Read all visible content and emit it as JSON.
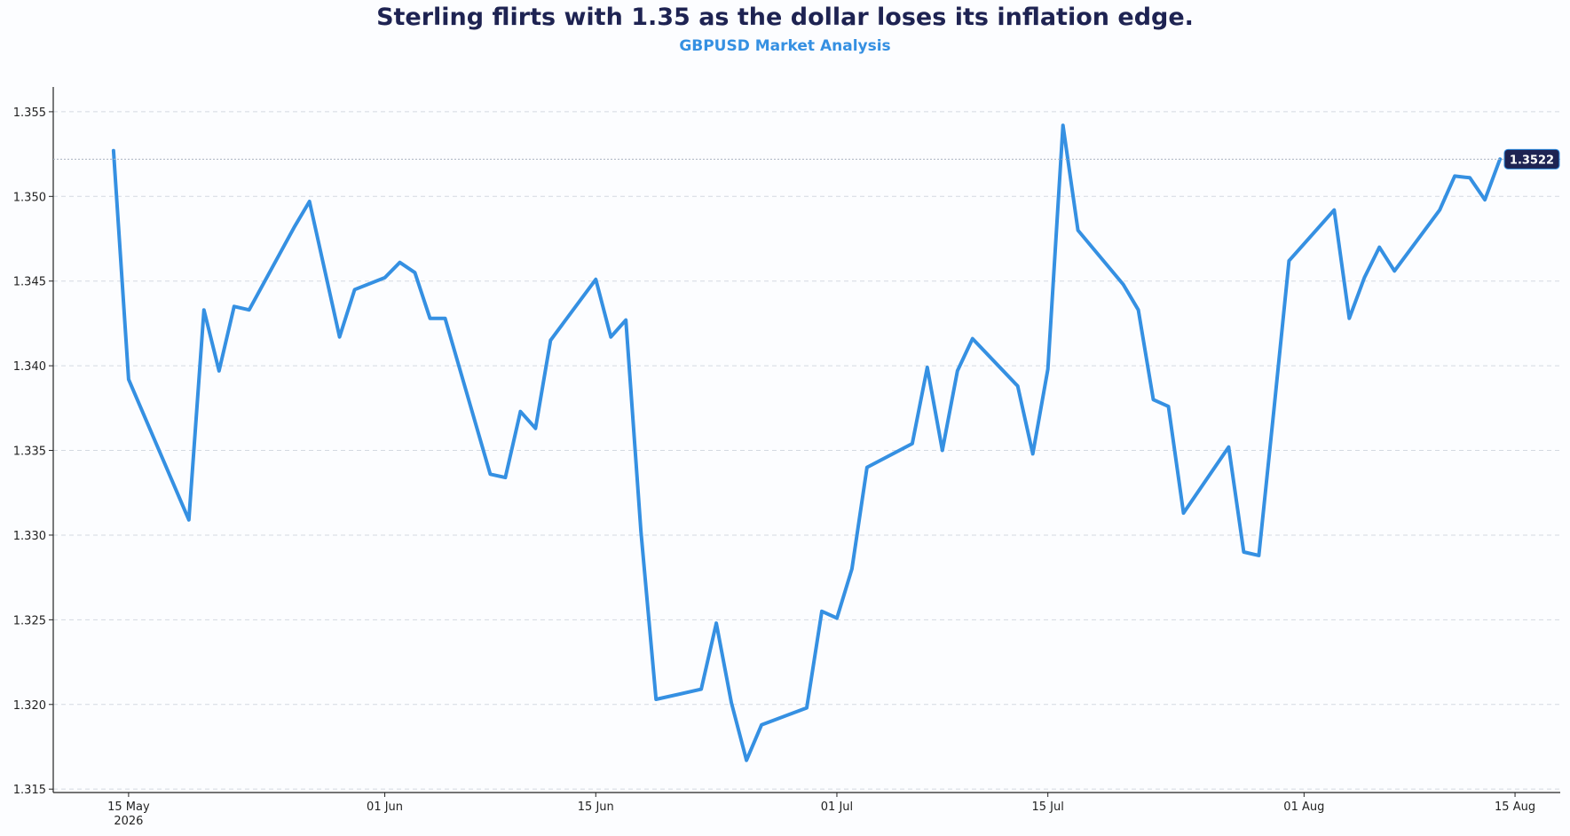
{
  "header": {
    "title": "Sterling flirts with 1.35 as the dollar loses its inflation edge.",
    "subtitle": "GBPUSD Market Analysis"
  },
  "chart_data": {
    "type": "line",
    "title": "Sterling flirts with 1.35 as the dollar loses its inflation edge.",
    "subtitle": "GBPUSD Market Analysis",
    "xlabel": "",
    "ylabel": "",
    "xlim": [
      "2026-05-10",
      "2026-08-18"
    ],
    "ylim": [
      1.3148,
      1.3562
    ],
    "grid": "horizontal dashed",
    "colors": {
      "line": "#3590e2",
      "title": "#1e2352",
      "subtitle": "#3590e2",
      "badge": "#1e2352"
    },
    "y_ticks": [
      "1.315",
      "1.320",
      "1.325",
      "1.330",
      "1.335",
      "1.340",
      "1.345",
      "1.350",
      "1.355"
    ],
    "x_ticks": [
      {
        "date": "2026-05-15",
        "label": "15 May",
        "sublabel": "2026"
      },
      {
        "date": "2026-06-01",
        "label": "01 Jun",
        "sublabel": ""
      },
      {
        "date": "2026-06-15",
        "label": "15 Jun",
        "sublabel": ""
      },
      {
        "date": "2026-07-01",
        "label": "01 Jul",
        "sublabel": ""
      },
      {
        "date": "2026-07-15",
        "label": "15 Jul",
        "sublabel": ""
      },
      {
        "date": "2026-08-01",
        "label": "01 Aug",
        "sublabel": ""
      },
      {
        "date": "2026-08-15",
        "label": "15 Aug",
        "sublabel": ""
      }
    ],
    "last_value_label": "1.3522",
    "series": [
      {
        "x": [
          "2026-05-14",
          "2026-05-15",
          "2026-05-19",
          "2026-05-20",
          "2026-05-21",
          "2026-05-22",
          "2026-05-23",
          "2026-05-26",
          "2026-05-27",
          "2026-05-29",
          "2026-05-30",
          "2026-06-01",
          "2026-06-02",
          "2026-06-03",
          "2026-06-04",
          "2026-06-05",
          "2026-06-08",
          "2026-06-09",
          "2026-06-10",
          "2026-06-11",
          "2026-06-12",
          "2026-06-15",
          "2026-06-16",
          "2026-06-17",
          "2026-06-18",
          "2026-06-19",
          "2026-06-22",
          "2026-06-23",
          "2026-06-24",
          "2026-06-25",
          "2026-06-26",
          "2026-06-29",
          "2026-06-30",
          "2026-07-01",
          "2026-07-02",
          "2026-07-03",
          "2026-07-06",
          "2026-07-07",
          "2026-07-08",
          "2026-07-09",
          "2026-07-10",
          "2026-07-13",
          "2026-07-14",
          "2026-07-15",
          "2026-07-16",
          "2026-07-17",
          "2026-07-20",
          "2026-07-21",
          "2026-07-22",
          "2026-07-23",
          "2026-07-24",
          "2026-07-27",
          "2026-07-28",
          "2026-07-29",
          "2026-07-30",
          "2026-07-31",
          "2026-08-03",
          "2026-08-04",
          "2026-08-05",
          "2026-08-06",
          "2026-08-07",
          "2026-08-10",
          "2026-08-11",
          "2026-08-12",
          "2026-08-13",
          "2026-08-14"
        ],
        "values": [
          1.3527,
          1.3392,
          1.3309,
          1.3433,
          1.3397,
          1.3435,
          1.3433,
          1.3482,
          1.3497,
          1.3417,
          1.3445,
          1.3452,
          1.3461,
          1.3455,
          1.3428,
          1.3428,
          1.3336,
          1.3334,
          1.3373,
          1.3363,
          1.3415,
          1.3451,
          1.3417,
          1.3427,
          1.3302,
          1.3203,
          1.3209,
          1.3248,
          1.3201,
          1.3167,
          1.3188,
          1.3198,
          1.3255,
          1.3251,
          1.328,
          1.334,
          1.3354,
          1.3399,
          1.335,
          1.3397,
          1.3416,
          1.3388,
          1.3348,
          1.3398,
          1.3542,
          1.348,
          1.3448,
          1.3433,
          1.338,
          1.3376,
          1.3313,
          1.3352,
          1.329,
          1.3288,
          1.3374,
          1.3462,
          1.3492,
          1.3428,
          1.3452,
          1.347,
          1.3456,
          1.3492,
          1.3512,
          1.3511,
          1.3498,
          1.3522
        ]
      }
    ]
  }
}
